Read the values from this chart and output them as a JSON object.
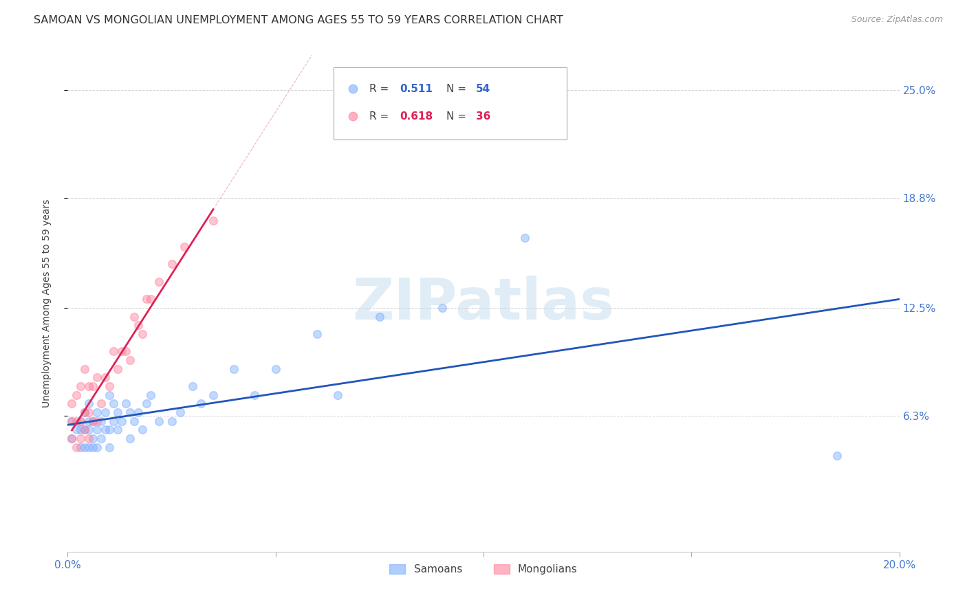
{
  "title": "SAMOAN VS MONGOLIAN UNEMPLOYMENT AMONG AGES 55 TO 59 YEARS CORRELATION CHART",
  "source": "Source: ZipAtlas.com",
  "ylabel": "Unemployment Among Ages 55 to 59 years",
  "xlim": [
    0.0,
    0.2
  ],
  "ylim": [
    -0.015,
    0.27
  ],
  "xtick_positions": [
    0.0,
    0.05,
    0.1,
    0.15,
    0.2
  ],
  "xticklabels": [
    "0.0%",
    "",
    "",
    "",
    "20.0%"
  ],
  "ytick_values": [
    0.063,
    0.125,
    0.188,
    0.25
  ],
  "ytick_labels": [
    "6.3%",
    "12.5%",
    "18.8%",
    "25.0%"
  ],
  "watermark": "ZIPatlas",
  "samoan_color": "#7aadff",
  "mongolian_color": "#ff8099",
  "samoan_line_color": "#2255bb",
  "mongolian_line_color": "#dd2255",
  "bg_color": "#ffffff",
  "grid_color": "#cccccc",
  "marker_size": 70,
  "marker_alpha": 0.45,
  "R_samoan": 0.511,
  "N_samoan": 54,
  "R_mongolian": 0.618,
  "N_mongolian": 36,
  "samoans_x": [
    0.001,
    0.001,
    0.002,
    0.003,
    0.003,
    0.003,
    0.004,
    0.004,
    0.004,
    0.005,
    0.005,
    0.005,
    0.005,
    0.006,
    0.006,
    0.006,
    0.007,
    0.007,
    0.007,
    0.008,
    0.008,
    0.009,
    0.009,
    0.01,
    0.01,
    0.01,
    0.011,
    0.011,
    0.012,
    0.012,
    0.013,
    0.014,
    0.015,
    0.015,
    0.016,
    0.017,
    0.018,
    0.019,
    0.02,
    0.022,
    0.025,
    0.027,
    0.03,
    0.032,
    0.035,
    0.04,
    0.045,
    0.05,
    0.06,
    0.065,
    0.075,
    0.09,
    0.11,
    0.185
  ],
  "samoans_y": [
    0.05,
    0.06,
    0.055,
    0.045,
    0.055,
    0.06,
    0.045,
    0.055,
    0.065,
    0.045,
    0.055,
    0.06,
    0.07,
    0.045,
    0.05,
    0.06,
    0.045,
    0.055,
    0.065,
    0.05,
    0.06,
    0.055,
    0.065,
    0.045,
    0.055,
    0.075,
    0.06,
    0.07,
    0.055,
    0.065,
    0.06,
    0.07,
    0.05,
    0.065,
    0.06,
    0.065,
    0.055,
    0.07,
    0.075,
    0.06,
    0.06,
    0.065,
    0.08,
    0.07,
    0.075,
    0.09,
    0.075,
    0.09,
    0.11,
    0.075,
    0.12,
    0.125,
    0.165,
    0.04
  ],
  "mongolians_x": [
    0.001,
    0.001,
    0.001,
    0.002,
    0.002,
    0.002,
    0.003,
    0.003,
    0.003,
    0.004,
    0.004,
    0.004,
    0.005,
    0.005,
    0.005,
    0.006,
    0.006,
    0.007,
    0.007,
    0.008,
    0.009,
    0.01,
    0.011,
    0.012,
    0.013,
    0.014,
    0.015,
    0.016,
    0.017,
    0.018,
    0.019,
    0.02,
    0.022,
    0.025,
    0.028,
    0.035
  ],
  "mongolians_y": [
    0.05,
    0.06,
    0.07,
    0.045,
    0.06,
    0.075,
    0.05,
    0.06,
    0.08,
    0.055,
    0.065,
    0.09,
    0.05,
    0.065,
    0.08,
    0.06,
    0.08,
    0.06,
    0.085,
    0.07,
    0.085,
    0.08,
    0.1,
    0.09,
    0.1,
    0.1,
    0.095,
    0.12,
    0.115,
    0.11,
    0.13,
    0.13,
    0.14,
    0.15,
    0.16,
    0.175
  ]
}
